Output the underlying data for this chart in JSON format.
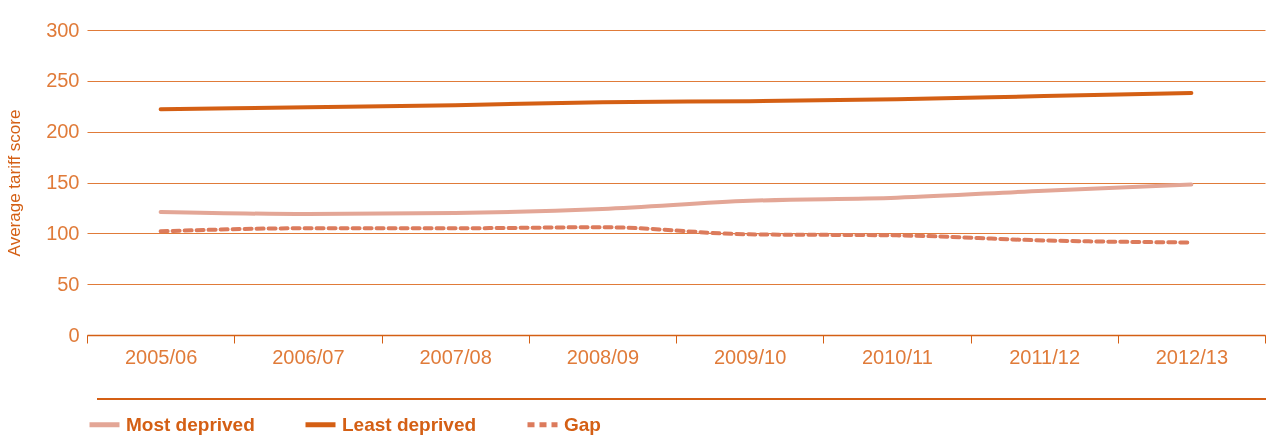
{
  "chart_data": {
    "type": "line",
    "ylabel": "Average tariff score",
    "categories": [
      "2005/06",
      "2006/07",
      "2007/08",
      "2008/09",
      "2009/10",
      "2010/11",
      "2011/12",
      "2012/13"
    ],
    "series": [
      {
        "name": "Most deprived",
        "color": "#e3a696",
        "line_style": "solid",
        "values": [
          121,
          119,
          120,
          124,
          132,
          135,
          142,
          148
        ]
      },
      {
        "name": "Least deprived",
        "color": "#d45f14",
        "line_style": "solid",
        "values": [
          222,
          224,
          226,
          229,
          230,
          232,
          235,
          238
        ]
      },
      {
        "name": "Gap",
        "color": "#dc7b5c",
        "line_style": "dashed",
        "values": [
          102,
          105,
          105,
          106,
          99,
          98,
          93,
          91
        ]
      }
    ],
    "ylim": [
      0,
      300
    ],
    "yticks": [
      0,
      50,
      100,
      150,
      200,
      250,
      300
    ],
    "grid": "y",
    "legend": "bottom",
    "marker": "none"
  }
}
